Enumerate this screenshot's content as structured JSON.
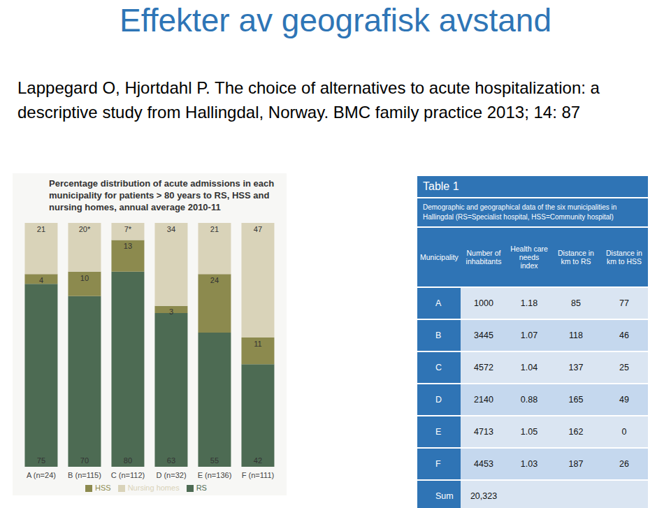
{
  "slide_title": "Effekter av geografisk avstand",
  "citation": [
    "Lappegard O, Hjortdahl P. The choice of alternatives to acute hospitalization: a",
    "descriptive study from Hallingdal, Norway. BMC family practice 2013; 14: 87"
  ],
  "chart_data": {
    "type": "bar",
    "title": "Percentage distribution of acute admissions in each municipality for patients > 80 years to RS, HSS and nursing homes, annual average 2010-11",
    "categories": [
      "A (n=24)",
      "B (n=115)",
      "C (n=112)",
      "D (n=32)",
      "E (n=136)",
      "F (n=111)"
    ],
    "series": [
      {
        "name": "RS",
        "color": "#4d6b53",
        "values": [
          75,
          70,
          80,
          63,
          55,
          42
        ]
      },
      {
        "name": "HSS",
        "color": "#8c8a4e",
        "values": [
          4,
          10,
          13,
          3,
          24,
          11
        ]
      },
      {
        "name": "Nursing homes",
        "color": "#d9d3b9",
        "values": [
          21,
          20,
          7,
          34,
          21,
          47
        ],
        "value_labels": [
          "21",
          "20*",
          "7*",
          "34",
          "21",
          "47"
        ]
      }
    ],
    "stacked": true,
    "data_labels": true,
    "legend": "bottom",
    "tick_labels": "x",
    "ylim": [
      0,
      100
    ]
  },
  "table": {
    "title": "Table 1",
    "caption": "Demographic and geographical data of the six municipalities in Hallingdal (RS=Specialist hospital, HSS=Community hospital)",
    "header": [
      "Municipality",
      "Number of inhabitants",
      "Health care needs index",
      "Distance in km to RS",
      "Distance in km to HSS"
    ],
    "rows": [
      [
        "A",
        "1000",
        "1.18",
        "85",
        "77"
      ],
      [
        "B",
        "3445",
        "1.07",
        "118",
        "46"
      ],
      [
        "C",
        "4572",
        "1.04",
        "137",
        "25"
      ],
      [
        "D",
        "2140",
        "0.88",
        "165",
        "49"
      ],
      [
        "E",
        "4713",
        "1.05",
        "162",
        "0"
      ],
      [
        "F",
        "4453",
        "1.03",
        "187",
        "26"
      ],
      [
        "Sum",
        "20,323"
      ]
    ]
  }
}
